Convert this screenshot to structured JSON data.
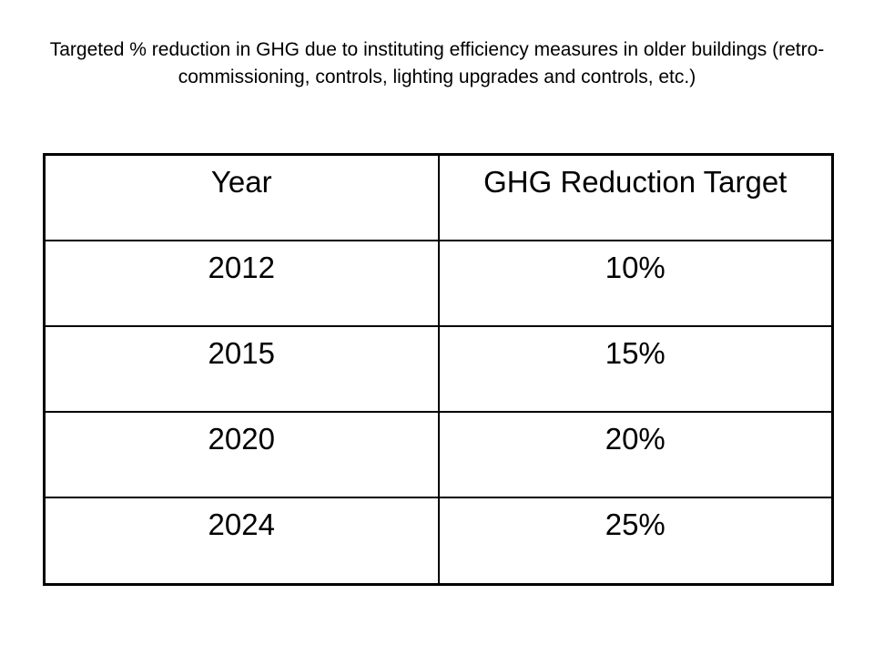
{
  "title": "Targeted % reduction in GHG due to instituting efficiency measures in older buildings (retro-commissioning, controls, lighting upgrades and controls, etc.)",
  "table": {
    "headers": [
      "Year",
      "GHG Reduction Target"
    ],
    "rows": [
      [
        "2012",
        "10%"
      ],
      [
        "2015",
        "15%"
      ],
      [
        "2020",
        "20%"
      ],
      [
        "2024",
        "25%"
      ]
    ]
  }
}
